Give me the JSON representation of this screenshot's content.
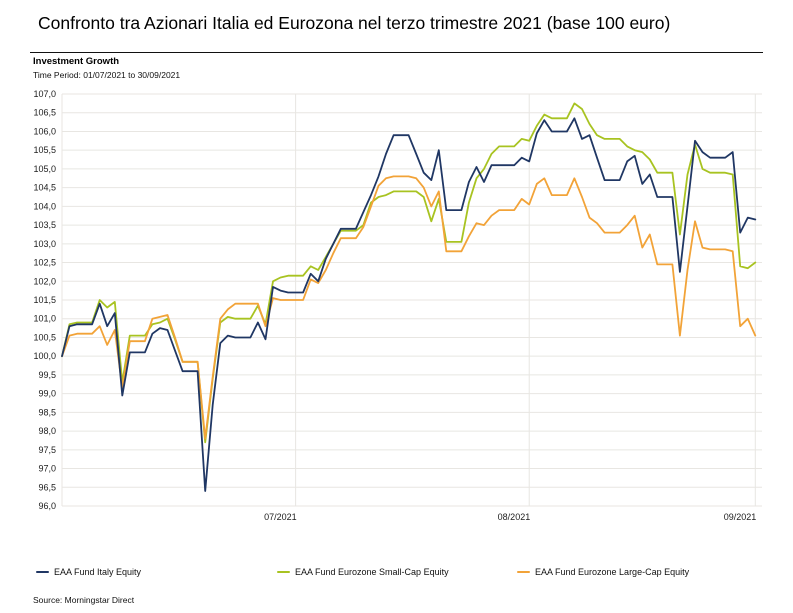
{
  "title": "Confronto tra Azionari Italia ed Eurozona nel terzo trimestre 2021 (base 100 euro)",
  "section": {
    "heading": "Investment Growth",
    "time_period": "Time Period: 01/07/2021 to 30/09/2021"
  },
  "source": "Source: Morningstar Direct",
  "colors": {
    "italy": "#203764",
    "smallcap": "#A8C321",
    "largecap": "#F2A338",
    "gridline": "#E8E6E2",
    "axis_text": "#202020"
  },
  "chart_data": {
    "type": "line",
    "title": "Investment Growth",
    "xlabel": "",
    "ylabel": "",
    "ylim": [
      96.0,
      107.0
    ],
    "y_tick_step": 0.5,
    "grid": true,
    "legend_position": "bottom",
    "y_tick_labels": [
      "107,0",
      "106,5",
      "106,0",
      "105,5",
      "105,0",
      "104,5",
      "104,0",
      "103,5",
      "103,0",
      "102,5",
      "102,0",
      "101,5",
      "101,0",
      "100,5",
      "100,0",
      "99,5",
      "99,0",
      "98,5",
      "98,0",
      "97,5",
      "97,0",
      "96,5",
      "96,0"
    ],
    "x_tick_labels": [
      "07/2021",
      "08/2021",
      "09/2021"
    ],
    "x_tick_dates": [
      "2021-07-31",
      "2021-08-31",
      "2021-09-30"
    ],
    "x": [
      "2021-06-30",
      "2021-07-01",
      "2021-07-02",
      "2021-07-03",
      "2021-07-04",
      "2021-07-05",
      "2021-07-06",
      "2021-07-07",
      "2021-07-08",
      "2021-07-09",
      "2021-07-10",
      "2021-07-11",
      "2021-07-12",
      "2021-07-13",
      "2021-07-14",
      "2021-07-15",
      "2021-07-16",
      "2021-07-17",
      "2021-07-18",
      "2021-07-19",
      "2021-07-20",
      "2021-07-21",
      "2021-07-22",
      "2021-07-23",
      "2021-07-24",
      "2021-07-25",
      "2021-07-26",
      "2021-07-27",
      "2021-07-28",
      "2021-07-29",
      "2021-07-30",
      "2021-07-31",
      "2021-08-01",
      "2021-08-02",
      "2021-08-03",
      "2021-08-04",
      "2021-08-05",
      "2021-08-06",
      "2021-08-07",
      "2021-08-08",
      "2021-08-09",
      "2021-08-10",
      "2021-08-11",
      "2021-08-12",
      "2021-08-13",
      "2021-08-14",
      "2021-08-15",
      "2021-08-16",
      "2021-08-17",
      "2021-08-18",
      "2021-08-19",
      "2021-08-20",
      "2021-08-21",
      "2021-08-22",
      "2021-08-23",
      "2021-08-24",
      "2021-08-25",
      "2021-08-26",
      "2021-08-27",
      "2021-08-28",
      "2021-08-29",
      "2021-08-30",
      "2021-08-31",
      "2021-09-01",
      "2021-09-02",
      "2021-09-03",
      "2021-09-04",
      "2021-09-05",
      "2021-09-06",
      "2021-09-07",
      "2021-09-08",
      "2021-09-09",
      "2021-09-10",
      "2021-09-11",
      "2021-09-12",
      "2021-09-13",
      "2021-09-14",
      "2021-09-15",
      "2021-09-16",
      "2021-09-17",
      "2021-09-18",
      "2021-09-19",
      "2021-09-20",
      "2021-09-21",
      "2021-09-22",
      "2021-09-23",
      "2021-09-24",
      "2021-09-25",
      "2021-09-26",
      "2021-09-27",
      "2021-09-28",
      "2021-09-29",
      "2021-09-30"
    ],
    "series": [
      {
        "name": "EAA Fund Italy Equity",
        "color": "#203764",
        "values": [
          100,
          100.8,
          100.85,
          100.85,
          100.85,
          101.4,
          100.8,
          101.15,
          98.95,
          100.1,
          100.1,
          100.1,
          100.6,
          100.75,
          100.7,
          100.15,
          99.6,
          99.6,
          99.6,
          96.4,
          98.7,
          100.35,
          100.55,
          100.5,
          100.5,
          100.5,
          100.9,
          100.45,
          101.85,
          101.75,
          101.7,
          101.7,
          101.7,
          102.2,
          102,
          102.6,
          103,
          103.4,
          103.4,
          103.4,
          103.85,
          104.3,
          104.8,
          105.4,
          105.9,
          105.9,
          105.9,
          105.4,
          104.9,
          104.7,
          105.5,
          103.9,
          103.9,
          103.9,
          104.65,
          105.05,
          104.65,
          105.1,
          105.1,
          105.1,
          105.1,
          105.3,
          105.2,
          105.95,
          106.3,
          106,
          106,
          106,
          106.35,
          105.8,
          105.9,
          105.3,
          104.7,
          104.7,
          104.7,
          105.2,
          105.35,
          104.6,
          104.85,
          104.25,
          104.25,
          104.25,
          102.25,
          104,
          105.75,
          105.45,
          105.3,
          105.3,
          105.3,
          105.45,
          103.3,
          103.7,
          103.65
        ]
      },
      {
        "name": "EAA Fund Eurozone Small-Cap Equity",
        "color": "#A8C321",
        "values": [
          100,
          100.85,
          100.9,
          100.9,
          100.9,
          101.5,
          101.3,
          101.45,
          99.3,
          100.55,
          100.55,
          100.55,
          100.85,
          100.9,
          101,
          100.45,
          99.85,
          99.85,
          99.85,
          97.7,
          99.4,
          100.9,
          101.05,
          101,
          101,
          101,
          101.35,
          100.85,
          102,
          102.1,
          102.15,
          102.15,
          102.15,
          102.4,
          102.3,
          102.65,
          103,
          103.35,
          103.35,
          103.35,
          103.5,
          104.1,
          104.25,
          104.3,
          104.4,
          104.4,
          104.4,
          104.4,
          104.25,
          103.6,
          104.2,
          103.05,
          103.05,
          103.05,
          104.1,
          104.75,
          105,
          105.4,
          105.6,
          105.6,
          105.6,
          105.8,
          105.75,
          106.15,
          106.45,
          106.35,
          106.35,
          106.35,
          106.75,
          106.6,
          106.2,
          105.9,
          105.8,
          105.8,
          105.8,
          105.6,
          105.5,
          105.45,
          105.25,
          104.9,
          104.9,
          104.9,
          103.25,
          104.85,
          105.65,
          105,
          104.9,
          104.9,
          104.9,
          104.85,
          102.4,
          102.35,
          102.5
        ]
      },
      {
        "name": "EAA Fund Eurozone Large-Cap Equity",
        "color": "#F2A338",
        "values": [
          100,
          100.55,
          100.6,
          100.6,
          100.6,
          100.8,
          100.3,
          100.7,
          99.15,
          100.4,
          100.4,
          100.4,
          101,
          101.05,
          101.1,
          100.5,
          99.85,
          99.85,
          99.85,
          97.8,
          99.45,
          101,
          101.25,
          101.4,
          101.4,
          101.4,
          101.4,
          100.8,
          101.55,
          101.5,
          101.5,
          101.5,
          101.5,
          102.05,
          101.95,
          102.3,
          102.75,
          103.15,
          103.15,
          103.15,
          103.45,
          104,
          104.55,
          104.75,
          104.8,
          104.8,
          104.8,
          104.75,
          104.5,
          104,
          104.4,
          102.8,
          102.8,
          102.8,
          103.2,
          103.55,
          103.5,
          103.75,
          103.9,
          103.9,
          103.9,
          104.2,
          104.05,
          104.6,
          104.75,
          104.3,
          104.3,
          104.3,
          104.75,
          104.25,
          103.7,
          103.55,
          103.3,
          103.3,
          103.3,
          103.5,
          103.75,
          102.9,
          103.25,
          102.45,
          102.45,
          102.45,
          100.55,
          102.3,
          103.6,
          102.9,
          102.85,
          102.85,
          102.85,
          102.8,
          100.8,
          101,
          100.55
        ]
      }
    ]
  }
}
